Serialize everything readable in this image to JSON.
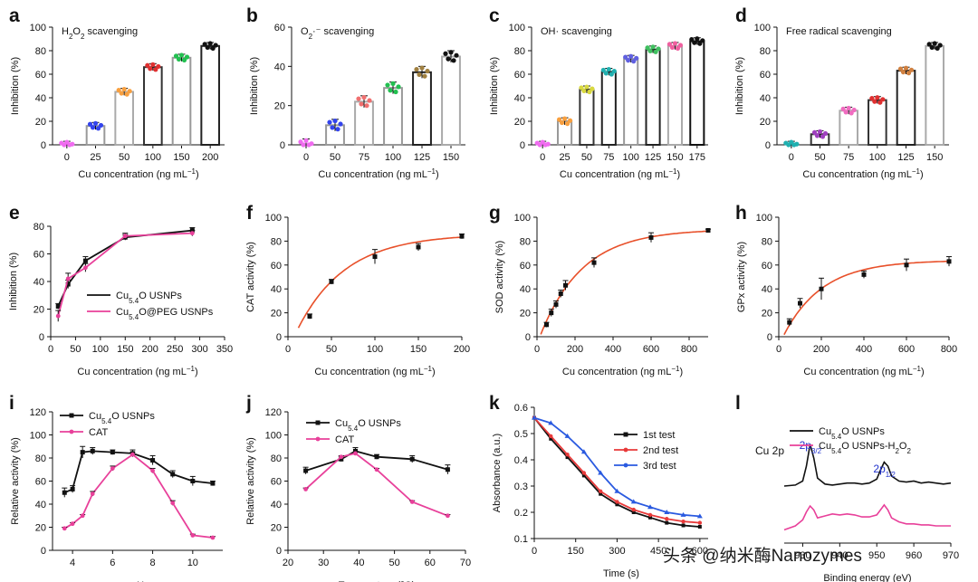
{
  "watermark": "头条 @纳米酶Nanozymes",
  "chart_data": [
    {
      "letter": "a",
      "type": "bar",
      "title": "H2O2 scavenging",
      "xlabel": "Cu concentration (ng mL⁻¹)",
      "ylabel": "Inhibition (%)",
      "ylim": [
        0,
        100
      ],
      "yticks": [
        0,
        20,
        40,
        60,
        80,
        100
      ],
      "categories": [
        "0",
        "25",
        "50",
        "100",
        "150",
        "200"
      ],
      "values": [
        0,
        16,
        45,
        66,
        74,
        84
      ],
      "bar_colors": [
        "#ffffff",
        "#999999",
        "#aaaaaa",
        "#333333",
        "#999999",
        "#222222"
      ],
      "point_colors": [
        "#f06cf0",
        "#3344ee",
        "#f8a040",
        "#e03030",
        "#22c050",
        "#111111"
      ]
    },
    {
      "letter": "b",
      "type": "bar",
      "title": "O2·⁻ scavenging",
      "xlabel": "Cu concentration (ng mL⁻¹)",
      "ylabel": "Inhibition (%)",
      "ylim": [
        0,
        60
      ],
      "yticks": [
        0,
        20,
        40,
        60
      ],
      "categories": [
        "0",
        "50",
        "75",
        "100",
        "125",
        "150"
      ],
      "values": [
        0,
        10,
        22,
        29,
        37,
        45
      ],
      "bar_colors": [
        "#ffffff",
        "#999999",
        "#aaaaaa",
        "#999999",
        "#222222",
        "#aaaaaa"
      ],
      "point_colors": [
        "#f06cf0",
        "#3344ee",
        "#f07070",
        "#22c050",
        "#a08040",
        "#111111"
      ]
    },
    {
      "letter": "c",
      "type": "bar",
      "title": "OH· scavenging",
      "xlabel": "Cu concentration (ng mL⁻¹)",
      "ylabel": "Inhibition (%)",
      "ylim": [
        0,
        100
      ],
      "yticks": [
        0,
        20,
        40,
        60,
        80,
        100
      ],
      "categories": [
        "0",
        "25",
        "50",
        "75",
        "100",
        "125",
        "150",
        "175"
      ],
      "values": [
        0,
        20,
        47,
        62,
        73,
        81,
        84,
        88
      ],
      "bar_colors": [
        "#ffffff",
        "#999999",
        "#333333",
        "#222222",
        "#999999",
        "#222222",
        "#aaaaaa",
        "#111111"
      ],
      "point_colors": [
        "#f06cf0",
        "#f8a040",
        "#d8d840",
        "#22b0b0",
        "#6060e0",
        "#40c060",
        "#f060a0",
        "#111111"
      ]
    },
    {
      "letter": "d",
      "type": "bar",
      "title": "Free radical scavenging",
      "xlabel": "Cu concentration (ng mL⁻¹)",
      "ylabel": "Inhibition (%)",
      "ylim": [
        0,
        100
      ],
      "yticks": [
        0,
        20,
        40,
        60,
        80,
        100
      ],
      "categories": [
        "0",
        "50",
        "75",
        "100",
        "125",
        "150"
      ],
      "values": [
        0,
        9,
        29,
        38,
        63,
        84
      ],
      "bar_colors": [
        "#ffffff",
        "#333333",
        "#aaaaaa",
        "#333333",
        "#222222",
        "#aaaaaa"
      ],
      "point_colors": [
        "#20b0b0",
        "#a040c0",
        "#f06cc0",
        "#e03030",
        "#d08040",
        "#111111"
      ]
    },
    {
      "letter": "e",
      "type": "line",
      "xlabel": "Cu concentration (ng mL⁻¹)",
      "ylabel": "Inhibition (%)",
      "xlim": [
        0,
        350
      ],
      "xticks": [
        0,
        50,
        100,
        150,
        200,
        250,
        300,
        350
      ],
      "ylim": [
        0,
        80
      ],
      "yticks": [
        0,
        20,
        40,
        60,
        80
      ],
      "series": [
        {
          "name": "Cu5.4O USNPs",
          "color": "#111111",
          "x": [
            15,
            35,
            70,
            150,
            285
          ],
          "y": [
            22,
            38,
            55,
            72,
            77
          ],
          "err": [
            2,
            3,
            3,
            2,
            2
          ]
        },
        {
          "name": "Cu5.4O@PEG USNPs",
          "color": "#e8409a",
          "x": [
            15,
            35,
            70,
            150,
            285
          ],
          "y": [
            15,
            42,
            50,
            73,
            75
          ],
          "err": [
            4,
            4,
            3,
            2,
            2
          ]
        }
      ],
      "legend": [
        {
          "label": "Cu",
          "sub": "5.4",
          "rest": "O USNPs"
        },
        {
          "label": "Cu",
          "sub": "5.4",
          "rest": "O@PEG USNPs"
        }
      ]
    },
    {
      "letter": "f",
      "type": "scatter",
      "xlabel": "Cu concentration (ng mL⁻¹)",
      "ylabel": "CAT activity (%)",
      "xlim": [
        0,
        200
      ],
      "xticks": [
        0,
        50,
        100,
        150,
        200
      ],
      "ylim": [
        0,
        100
      ],
      "yticks": [
        0,
        20,
        40,
        60,
        80,
        100
      ],
      "points": {
        "x": [
          25,
          50,
          100,
          150,
          200
        ],
        "y": [
          17,
          46,
          67,
          75,
          84
        ],
        "err": [
          2,
          2,
          6,
          3,
          2
        ]
      },
      "fit": {
        "type": "saturation",
        "ymax": 86,
        "k": 0.018,
        "x0": 12,
        "color": "#e8502a"
      }
    },
    {
      "letter": "g",
      "type": "scatter",
      "xlabel": "Cu concentration (ng mL⁻¹)",
      "ylabel": "SOD activity (%)",
      "xlim": [
        0,
        900
      ],
      "xticks": [
        0,
        200,
        400,
        600,
        800
      ],
      "ylim": [
        0,
        100
      ],
      "yticks": [
        0,
        20,
        40,
        60,
        80,
        100
      ],
      "points": {
        "x": [
          50,
          75,
          100,
          125,
          150,
          300,
          600,
          900
        ],
        "y": [
          10,
          20,
          27,
          36,
          43,
          62,
          83,
          89
        ],
        "err": [
          2,
          3,
          3,
          3,
          4,
          4,
          4,
          1
        ]
      },
      "fit": {
        "type": "saturation",
        "ymax": 90,
        "k": 0.0045,
        "x0": 20,
        "color": "#e8502a"
      }
    },
    {
      "letter": "h",
      "type": "scatter",
      "xlabel": "Cu concentration (ng mL⁻¹)",
      "ylabel": "GPx activity (%)",
      "xlim": [
        0,
        800
      ],
      "xticks": [
        0,
        200,
        400,
        600,
        800
      ],
      "ylim": [
        0,
        100
      ],
      "yticks": [
        0,
        20,
        40,
        60,
        80,
        100
      ],
      "points": {
        "x": [
          50,
          100,
          200,
          400,
          600,
          800
        ],
        "y": [
          12,
          28,
          40,
          52,
          60,
          63
        ],
        "err": [
          3,
          4,
          9,
          3,
          5,
          4
        ]
      },
      "fit": {
        "type": "saturation",
        "ymax": 64,
        "k": 0.0055,
        "x0": 25,
        "color": "#e8502a"
      }
    },
    {
      "letter": "i",
      "type": "line",
      "xlabel": "pH",
      "ylabel": "Relative activity (%)",
      "xlim": [
        3,
        11.5
      ],
      "xticks": [
        4,
        6,
        8,
        10
      ],
      "ylim": [
        0,
        120
      ],
      "yticks": [
        0,
        20,
        40,
        60,
        80,
        100,
        120
      ],
      "series": [
        {
          "name": "Cu5.4O USNPs",
          "color": "#111111",
          "x": [
            3.6,
            4,
            4.5,
            5,
            6,
            7,
            8,
            9,
            10,
            11
          ],
          "y": [
            50,
            53,
            85,
            86,
            85,
            84,
            78,
            66,
            60,
            58
          ],
          "err": [
            4,
            3,
            5,
            3,
            2,
            3,
            4,
            3,
            4,
            2
          ]
        },
        {
          "name": "CAT",
          "color": "#e8409a",
          "x": [
            3.6,
            4,
            4.5,
            5,
            6,
            7,
            8,
            9,
            10,
            11
          ],
          "y": [
            19,
            23,
            30,
            49,
            71,
            83,
            69,
            41,
            13,
            11
          ],
          "err": [
            1,
            1,
            1,
            2,
            2,
            2,
            2,
            2,
            1,
            1
          ]
        }
      ],
      "legend": [
        {
          "label": "Cu",
          "sub": "5.4",
          "rest": "O USNPs"
        },
        {
          "label": "CAT",
          "sub": "",
          "rest": ""
        }
      ]
    },
    {
      "letter": "j",
      "type": "line",
      "xlabel": "Temperature (°C)",
      "ylabel": "Relative activity (%)",
      "xlim": [
        20,
        70
      ],
      "xticks": [
        20,
        30,
        40,
        50,
        60,
        70
      ],
      "ylim": [
        0,
        120
      ],
      "yticks": [
        0,
        20,
        40,
        60,
        80,
        100,
        120
      ],
      "series": [
        {
          "name": "Cu5.4O USNPs",
          "color": "#111111",
          "x": [
            25,
            35,
            39,
            45,
            55,
            65
          ],
          "y": [
            69,
            79,
            86,
            81,
            79,
            70
          ],
          "err": [
            3,
            2,
            3,
            2,
            3,
            4
          ]
        },
        {
          "name": "CAT",
          "color": "#e8409a",
          "x": [
            25,
            35,
            39,
            45,
            55,
            65
          ],
          "y": [
            53,
            81,
            84,
            70,
            42,
            30
          ],
          "err": [
            1,
            1,
            1,
            1,
            1,
            1
          ]
        }
      ],
      "legend": [
        {
          "label": "Cu",
          "sub": "5.4",
          "rest": "O USNPs"
        },
        {
          "label": "CAT",
          "sub": "",
          "rest": ""
        }
      ]
    },
    {
      "letter": "k",
      "type": "line",
      "xlabel": "Time (s)",
      "ylabel": "Absorbance (a.u.)",
      "xlim": [
        0,
        630
      ],
      "xticks": [
        0,
        150,
        300,
        450,
        600
      ],
      "ylim": [
        0.1,
        0.6
      ],
      "yticks": [
        0.1,
        0.2,
        0.3,
        0.4,
        0.5,
        0.6
      ],
      "series": [
        {
          "name": "1st test",
          "color": "#111111",
          "x": [
            0,
            60,
            120,
            180,
            240,
            300,
            360,
            420,
            480,
            540,
            600
          ],
          "y": [
            0.56,
            0.48,
            0.41,
            0.34,
            0.27,
            0.23,
            0.2,
            0.18,
            0.16,
            0.15,
            0.145
          ]
        },
        {
          "name": "2nd test",
          "color": "#e83a3a",
          "x": [
            0,
            60,
            120,
            180,
            240,
            300,
            360,
            420,
            480,
            540,
            600
          ],
          "y": [
            0.56,
            0.49,
            0.42,
            0.35,
            0.28,
            0.24,
            0.21,
            0.19,
            0.175,
            0.165,
            0.16
          ]
        },
        {
          "name": "3rd test",
          "color": "#2a5ae0",
          "x": [
            0,
            60,
            120,
            180,
            240,
            300,
            360,
            420,
            480,
            540,
            600
          ],
          "y": [
            0.56,
            0.54,
            0.49,
            0.43,
            0.35,
            0.28,
            0.24,
            0.22,
            0.2,
            0.19,
            0.185
          ]
        }
      ],
      "legend": [
        {
          "label": "1st test"
        },
        {
          "label": "2nd test"
        },
        {
          "label": "3rd test"
        }
      ]
    },
    {
      "letter": "l",
      "type": "line",
      "title": "Cu 2p",
      "xlabel": "Binding energy (eV)",
      "ylabel": "",
      "xlim": [
        925,
        970
      ],
      "xticks": [
        930,
        940,
        950,
        960,
        970
      ],
      "series": [
        {
          "name": "Cu5.4O USNPs",
          "color": "#111111",
          "x": [
            925,
            928,
            930,
            931,
            932,
            933,
            934,
            936,
            938,
            940,
            942,
            944,
            946,
            948,
            950,
            951,
            952,
            953,
            954,
            956,
            958,
            960,
            962,
            964,
            966,
            968,
            970
          ],
          "y": [
            0.5,
            0.51,
            0.55,
            0.7,
            0.92,
            0.78,
            0.58,
            0.52,
            0.51,
            0.52,
            0.53,
            0.53,
            0.52,
            0.53,
            0.57,
            0.66,
            0.74,
            0.7,
            0.6,
            0.55,
            0.54,
            0.55,
            0.53,
            0.54,
            0.53,
            0.52,
            0.53
          ]
        },
        {
          "name": "Cu5.4O USNPs-H2O2",
          "color": "#e8409a",
          "x": [
            925,
            928,
            930,
            931,
            932,
            933,
            934,
            936,
            938,
            940,
            942,
            944,
            946,
            948,
            950,
            951,
            952,
            953,
            954,
            956,
            958,
            960,
            962,
            964,
            966,
            968,
            970
          ],
          "y": [
            0.06,
            0.1,
            0.16,
            0.24,
            0.3,
            0.26,
            0.18,
            0.2,
            0.22,
            0.21,
            0.22,
            0.21,
            0.19,
            0.19,
            0.21,
            0.26,
            0.31,
            0.26,
            0.18,
            0.14,
            0.12,
            0.12,
            0.11,
            0.11,
            0.1,
            0.1,
            0.1
          ]
        }
      ],
      "legend": [
        {
          "label": "Cu",
          "sub": "5.4",
          "rest": "O USNPs"
        },
        {
          "label": "Cu",
          "sub": "5.4",
          "rest": "O USNPs-H",
          "sub2": "2",
          "rest2": "O",
          "sub3": "2"
        }
      ],
      "annotations": [
        "2p3/2",
        "2p1/2"
      ]
    }
  ]
}
